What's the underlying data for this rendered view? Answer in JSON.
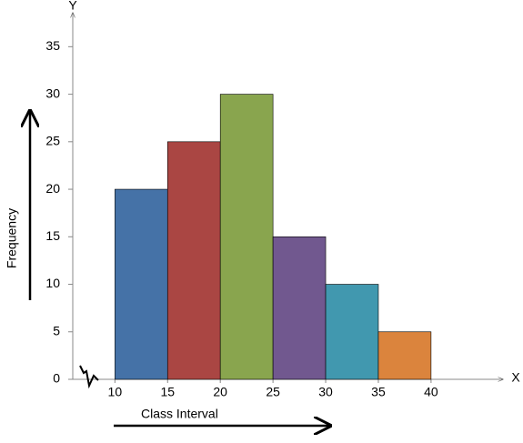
{
  "chart_data": {
    "type": "histogram",
    "x_axis_letter": "X",
    "y_axis_letter": "Y",
    "x_label": "Class Interval",
    "y_label": "Frequency",
    "bins": [
      10,
      15,
      20,
      25,
      30,
      35,
      40
    ],
    "counts": [
      20,
      25,
      30,
      15,
      10,
      5
    ],
    "colors": [
      "#4572a7",
      "#aa4643",
      "#89a54e",
      "#71588f",
      "#4198af",
      "#db843d"
    ],
    "xlim": [
      6,
      47
    ],
    "ylim": [
      0,
      38
    ],
    "xticks": [
      10,
      15,
      20,
      25,
      30,
      35,
      40
    ],
    "yticks": [
      0,
      5,
      10,
      15,
      20,
      25,
      30,
      35
    ],
    "grid": false
  }
}
